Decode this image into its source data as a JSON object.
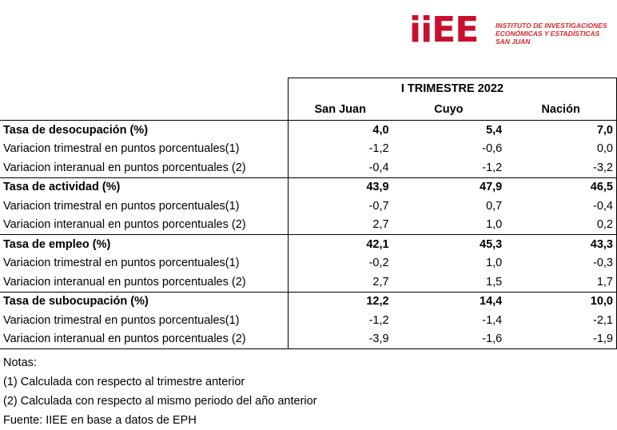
{
  "logo": {
    "mark": "iiEE",
    "lines": [
      "INSTITUTO DE INVESTIGACIONES",
      "ECONÓMICAS Y ESTADÍSTICAS",
      "SAN JUAN"
    ]
  },
  "table": {
    "period": "I TRIMESTRE 2022",
    "columns": [
      "San Juan",
      "Cuyo",
      "Nación"
    ],
    "groups": [
      {
        "title": "Tasa de desocupación (%)",
        "values": [
          "4,0",
          "5,4",
          "7,0"
        ],
        "rows": [
          {
            "label": "Variacion trimestral en puntos porcentuales(1)",
            "values": [
              "-1,2",
              "-0,6",
              "0,0"
            ]
          },
          {
            "label": "Variacion interanual en puntos porcentuales (2)",
            "values": [
              "-0,4",
              "-1,2",
              "-3,2"
            ]
          }
        ]
      },
      {
        "title": "Tasa de actividad (%)",
        "values": [
          "43,9",
          "47,9",
          "46,5"
        ],
        "rows": [
          {
            "label": "Variacion trimestral en puntos porcentuales(1)",
            "values": [
              "-0,7",
              "0,7",
              "-0,4"
            ]
          },
          {
            "label": "Variacion interanual en puntos porcentuales (2)",
            "values": [
              "2,7",
              "1,0",
              "0,2"
            ]
          }
        ]
      },
      {
        "title": "Tasa de empleo (%)",
        "values": [
          "42,1",
          "45,3",
          "43,3"
        ],
        "rows": [
          {
            "label": "Variacion trimestral en puntos porcentuales(1)",
            "values": [
              "-0,2",
              "1,0",
              "-0,3"
            ]
          },
          {
            "label": "Variacion interanual en puntos porcentuales (2)",
            "values": [
              "2,7",
              "1,5",
              "1,7"
            ]
          }
        ]
      },
      {
        "title": "Tasa de subocupación (%)",
        "values": [
          "12,2",
          "14,4",
          "10,0"
        ],
        "rows": [
          {
            "label": "Variacion trimestral en puntos porcentuales(1)",
            "values": [
              "-1,2",
              "-1,4",
              "-2,1"
            ]
          },
          {
            "label": "Variacion interanual en puntos porcentuales (2)",
            "values": [
              "-3,9",
              "-1,6",
              "-1,9"
            ]
          }
        ]
      }
    ]
  },
  "notes": [
    "Notas:",
    "(1) Calculada con respecto al trimestre anterior",
    "(2) Calculada con respecto al mismo periodo del año anterior",
    "Fuente: IIEE en base a datos de EPH"
  ]
}
